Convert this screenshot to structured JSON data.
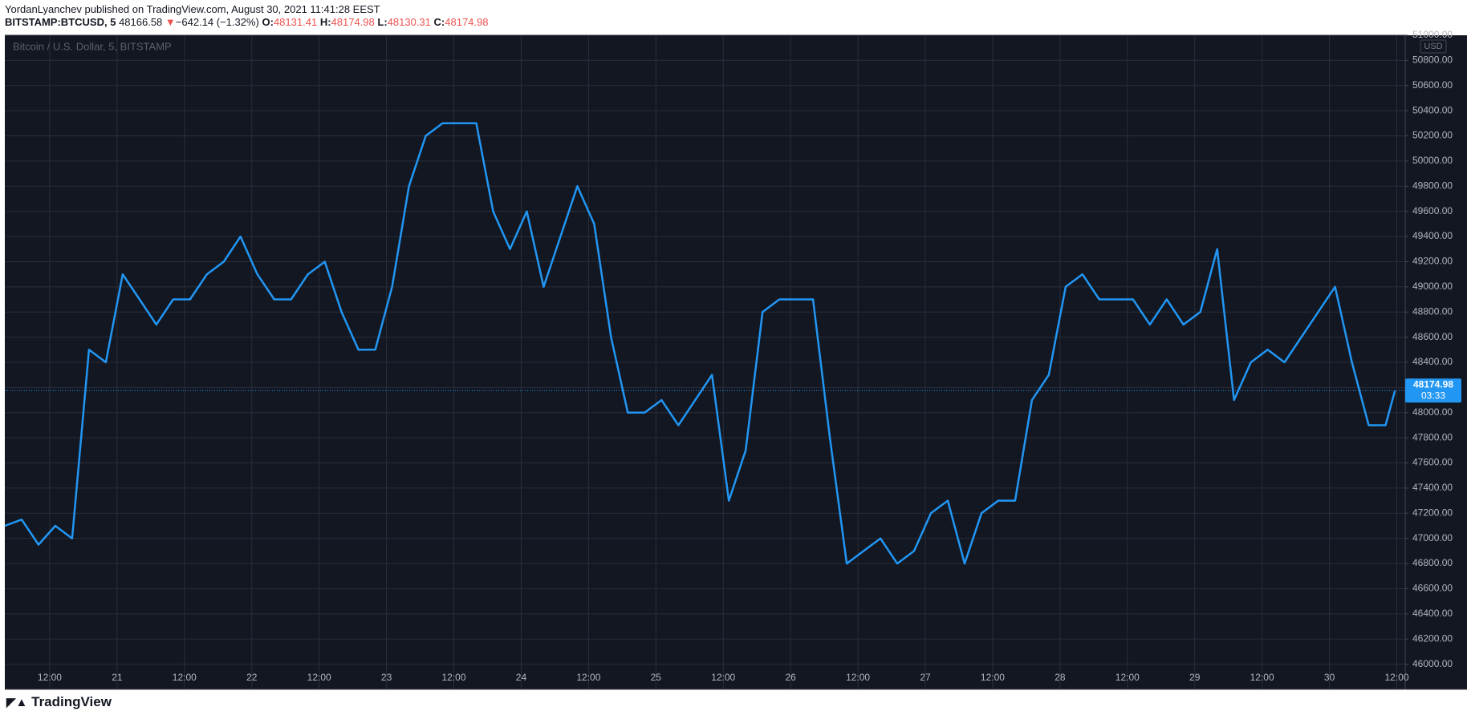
{
  "header": {
    "publisher": "YordanLyanchev published on TradingView.com, August 30, 2021 11:41:28 EEST",
    "symbol": "BITSTAMP:BTCUSD, 5",
    "price": "48166.58",
    "arrow": "▼",
    "change": "−642.14 (−1.32%)",
    "o_label": "O:",
    "o": "48131.41",
    "h_label": "H:",
    "h": "48174.98",
    "l_label": "L:",
    "l": "48130.31",
    "c_label": "C:",
    "c": "48174.98"
  },
  "chart_data": {
    "type": "line",
    "title": "Bitcoin / U.S. Dollar, 5, BITSTAMP",
    "y_unit": "USD",
    "series": [
      {
        "name": "BTCUSD",
        "color": "#2196f3",
        "x": [
          4,
          7,
          10,
          13,
          16,
          19,
          22,
          25,
          28,
          31,
          34,
          37,
          40,
          43,
          46,
          49,
          52,
          55,
          58,
          61,
          64,
          67,
          70,
          73,
          76,
          79,
          82,
          85,
          88,
          91,
          94,
          97,
          100,
          103,
          106,
          109,
          112,
          115,
          118,
          121,
          124,
          127,
          130,
          133,
          136,
          139,
          142,
          145,
          148,
          151,
          154,
          157,
          160,
          163,
          166,
          169,
          172,
          175,
          178,
          181,
          184,
          187,
          190,
          193,
          196,
          199,
          202,
          205,
          208,
          211,
          214,
          217,
          220,
          223,
          226,
          229,
          232,
          235,
          238,
          241,
          244,
          247,
          250,
          251.67
        ],
        "values": [
          47100,
          47150,
          46950,
          47100,
          47000,
          48500,
          48400,
          49100,
          48900,
          48700,
          48900,
          48900,
          49100,
          49200,
          49400,
          49100,
          48900,
          48900,
          49100,
          49200,
          48800,
          48500,
          48500,
          49000,
          49800,
          50200,
          50300,
          50300,
          50300,
          49600,
          49300,
          49600,
          49000,
          49400,
          49800,
          49500,
          48600,
          48000,
          48000,
          48100,
          47900,
          48100,
          48300,
          47300,
          47700,
          48800,
          48900,
          48900,
          48900,
          47800,
          46800,
          46900,
          47000,
          46800,
          46900,
          47200,
          47300,
          46800,
          47200,
          47300,
          47300,
          48100,
          48300,
          49000,
          49100,
          48900,
          48900,
          48900,
          48700,
          48900,
          48700,
          48800,
          49300,
          48100,
          48400,
          48500,
          48400,
          48600,
          48800,
          49000,
          48400,
          47900,
          47900,
          48174.98
        ]
      }
    ],
    "price_tag": {
      "price": "48174.98",
      "countdown": "03:33"
    },
    "xlim": [
      4,
      253.5
    ],
    "xticks": [
      {
        "value": 12,
        "label": "12:00"
      },
      {
        "value": 24,
        "label": "21"
      },
      {
        "value": 36,
        "label": "12:00"
      },
      {
        "value": 48,
        "label": "22"
      },
      {
        "value": 60,
        "label": "12:00"
      },
      {
        "value": 72,
        "label": "23"
      },
      {
        "value": 84,
        "label": "12:00"
      },
      {
        "value": 96,
        "label": "24"
      },
      {
        "value": 108,
        "label": "12:00"
      },
      {
        "value": 120,
        "label": "25"
      },
      {
        "value": 132,
        "label": "12:00"
      },
      {
        "value": 144,
        "label": "26"
      },
      {
        "value": 156,
        "label": "12:00"
      },
      {
        "value": 168,
        "label": "27"
      },
      {
        "value": 180,
        "label": "12:00"
      },
      {
        "value": 192,
        "label": "28"
      },
      {
        "value": 204,
        "label": "12:00"
      },
      {
        "value": 216,
        "label": "29"
      },
      {
        "value": 228,
        "label": "12:00"
      },
      {
        "value": 240,
        "label": "30"
      },
      {
        "value": 252,
        "label": "12:00"
      }
    ],
    "ylim": [
      45800,
      51000
    ],
    "yticks": [
      {
        "value": 46000,
        "label": "46000.00"
      },
      {
        "value": 46200,
        "label": "46200.00"
      },
      {
        "value": 46400,
        "label": "46400.00"
      },
      {
        "value": 46600,
        "label": "46600.00"
      },
      {
        "value": 46800,
        "label": "46800.00"
      },
      {
        "value": 47000,
        "label": "47000.00"
      },
      {
        "value": 47200,
        "label": "47200.00"
      },
      {
        "value": 47400,
        "label": "47400.00"
      },
      {
        "value": 47600,
        "label": "47600.00"
      },
      {
        "value": 47800,
        "label": "47800.00"
      },
      {
        "value": 48000,
        "label": "48000.00"
      },
      {
        "value": 48200,
        "label": "48200.00"
      },
      {
        "value": 48400,
        "label": "48400.00"
      },
      {
        "value": 48600,
        "label": "48600.00"
      },
      {
        "value": 48800,
        "label": "48800.00"
      },
      {
        "value": 49000,
        "label": "49000.00"
      },
      {
        "value": 49200,
        "label": "49200.00"
      },
      {
        "value": 49400,
        "label": "49400.00"
      },
      {
        "value": 49600,
        "label": "49600.00"
      },
      {
        "value": 49800,
        "label": "49800.00"
      },
      {
        "value": 50000,
        "label": "50000.00"
      },
      {
        "value": 50200,
        "label": "50200.00"
      },
      {
        "value": 50400,
        "label": "50400.00"
      },
      {
        "value": 50600,
        "label": "50600.00"
      },
      {
        "value": 50800,
        "label": "50800.00"
      },
      {
        "value": 51000,
        "label": "51000.00"
      }
    ],
    "grid": true
  },
  "footer": {
    "logo": "TradingView"
  }
}
